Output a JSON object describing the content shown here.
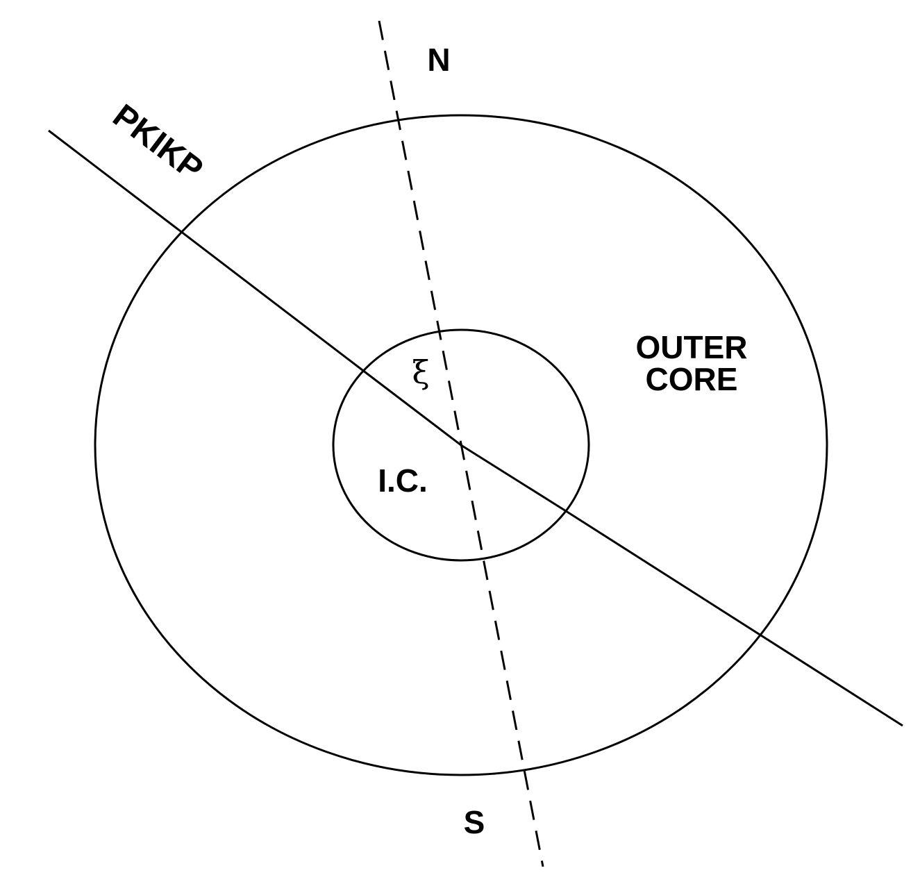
{
  "labels": {
    "north": "N",
    "south": "S",
    "ray": "PKIKP",
    "angle": "ξ",
    "inner_core": "I.C.",
    "outer_core_line1": "OUTER",
    "outer_core_line2": "CORE"
  },
  "colors": {
    "stroke": "#000000",
    "background": "#ffffff"
  }
}
